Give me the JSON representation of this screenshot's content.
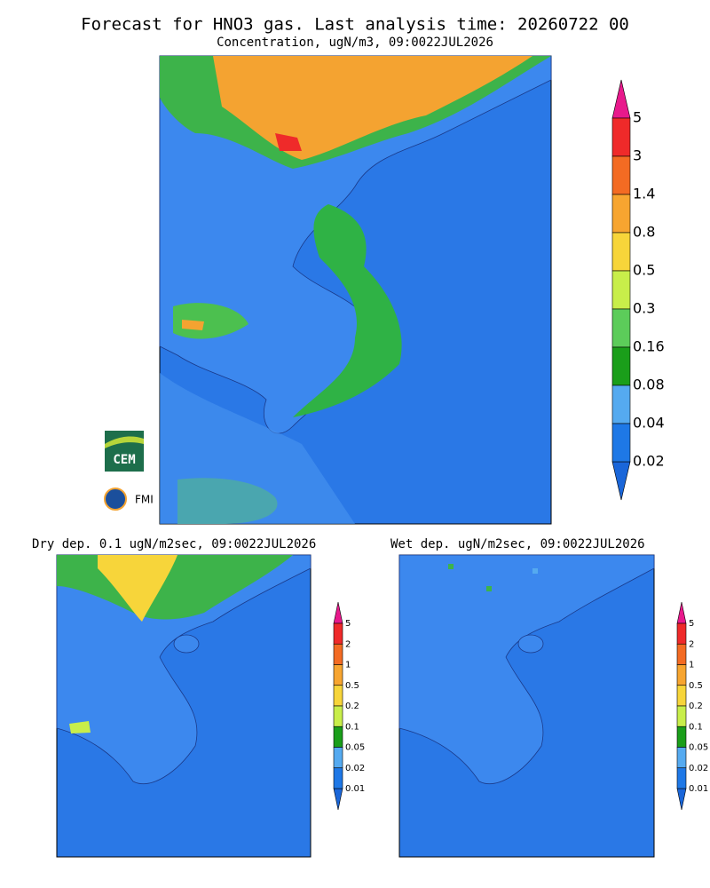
{
  "header": {
    "title": "Forecast for HNO3 gas. Last analysis time: 20260722 00",
    "subtitle": "Concentration, ugN/m3, 09:0022JUL2026"
  },
  "panels": [
    {
      "title": "Dry dep. 0.1 ugN/m2sec, 09:0022JUL2026"
    },
    {
      "title": "Wet dep. ugN/m2sec, 09:0022JUL2026"
    }
  ],
  "colorbars": [
    {
      "labels": [
        "5",
        "3",
        "1.4",
        "0.8",
        "0.5",
        "0.3",
        "0.16",
        "0.08",
        "0.04",
        "0.02"
      ],
      "colors": [
        "#ef2a2a",
        "#f36b23",
        "#f7a530",
        "#f7d53a",
        "#c8ee4a",
        "#5ccc5a",
        "#1a9e1a",
        "#55aaf0",
        "#1e78e6"
      ],
      "top_color": "#e8198c",
      "bottom_color": "#1a66d9"
    },
    {
      "labels": [
        "5",
        "2",
        "1",
        "0.5",
        "0.2",
        "0.1",
        "0.05",
        "0.02",
        "0.01"
      ],
      "colors": [
        "#ef2a2a",
        "#f36b23",
        "#f7a530",
        "#f7d53a",
        "#c8ee4a",
        "#1a9e1a",
        "#55aaf0",
        "#1e78e6"
      ],
      "top_color": "#e8198c",
      "bottom_color": "#1a66d9"
    },
    {
      "labels": [
        "5",
        "2",
        "1",
        "0.5",
        "0.2",
        "0.1",
        "0.05",
        "0.02",
        "0.01"
      ],
      "colors": [
        "#ef2a2a",
        "#f36b23",
        "#f7a530",
        "#f7d53a",
        "#c8ee4a",
        "#1a9e1a",
        "#55aaf0",
        "#1e78e6"
      ],
      "top_color": "#e8198c",
      "bottom_color": "#1a66d9"
    }
  ],
  "logos": {
    "cem": "CEM",
    "fmi": "FMI"
  }
}
